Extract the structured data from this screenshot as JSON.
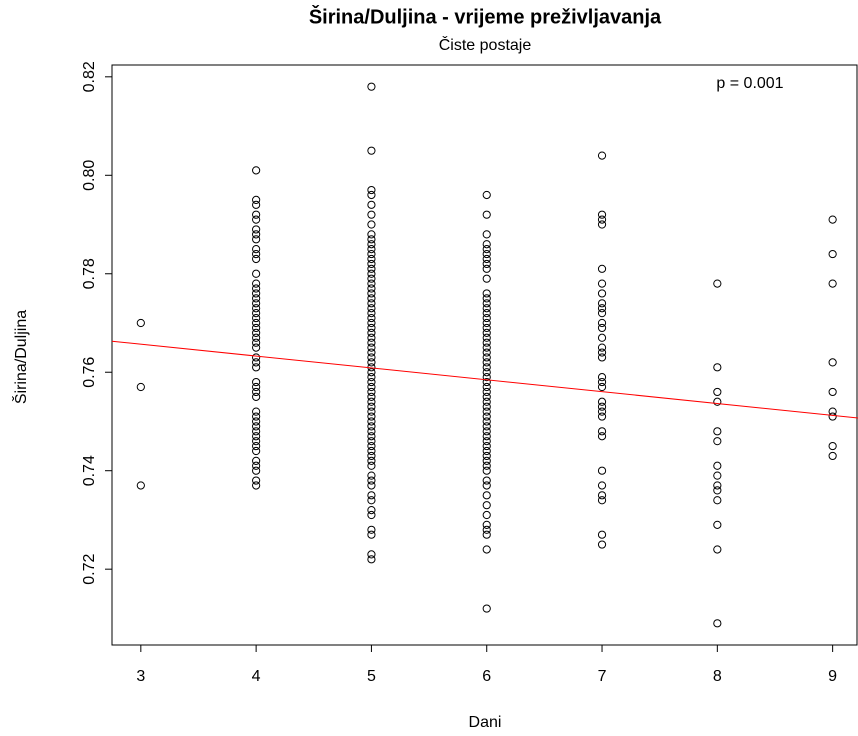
{
  "chart_data": {
    "type": "scatter",
    "title": "Širina/Duljina - vrijeme preživljavanja",
    "subtitle": "Čiste postaje",
    "x_label": "Dani",
    "y_label": "Širina/Duljina",
    "annotation": "p = 0.001",
    "xlim": [
      2.75,
      9.22
    ],
    "ylim": [
      0.7046,
      0.8224
    ],
    "xticks": [
      3,
      4,
      5,
      6,
      7,
      8,
      9
    ],
    "yticks": [
      0.72,
      0.74,
      0.76,
      0.78,
      {
        "value": 0.8,
        "label": "0.80"
      },
      0.82
    ],
    "grid": false,
    "color": "#000000",
    "fit": {
      "x": [
        2.75,
        9.22
      ],
      "y": [
        0.7663,
        0.7507
      ],
      "color": "#ff0000"
    },
    "x": [
      3,
      3,
      3,
      4,
      4,
      4,
      4,
      4,
      4,
      4,
      4,
      4,
      4,
      4,
      4,
      4,
      4,
      4,
      4,
      4,
      4,
      4,
      4,
      4,
      4,
      4,
      4,
      4,
      4,
      4,
      4,
      4,
      4,
      4,
      4,
      4,
      4,
      4,
      4,
      4,
      4,
      4,
      4,
      4,
      4,
      4,
      4,
      4,
      4,
      4,
      5,
      5,
      5,
      5,
      5,
      5,
      5,
      5,
      5,
      5,
      5,
      5,
      5,
      5,
      5,
      5,
      5,
      5,
      5,
      5,
      5,
      5,
      5,
      5,
      5,
      5,
      5,
      5,
      5,
      5,
      5,
      5,
      5,
      5,
      5,
      5,
      5,
      5,
      5,
      5,
      5,
      5,
      5,
      5,
      5,
      5,
      5,
      5,
      5,
      5,
      5,
      5,
      5,
      5,
      5,
      5,
      5,
      5,
      5,
      5,
      5,
      5,
      5,
      5,
      5,
      5,
      6,
      6,
      6,
      6,
      6,
      6,
      6,
      6,
      6,
      6,
      6,
      6,
      6,
      6,
      6,
      6,
      6,
      6,
      6,
      6,
      6,
      6,
      6,
      6,
      6,
      6,
      6,
      6,
      6,
      6,
      6,
      6,
      6,
      6,
      6,
      6,
      6,
      6,
      6,
      6,
      6,
      6,
      6,
      6,
      6,
      6,
      6,
      6,
      6,
      6,
      6,
      6,
      6,
      6,
      6,
      6,
      6,
      7,
      7,
      7,
      7,
      7,
      7,
      7,
      7,
      7,
      7,
      7,
      7,
      7,
      7,
      7,
      7,
      7,
      7,
      7,
      7,
      7,
      7,
      7,
      7,
      7,
      7,
      7,
      7,
      7,
      7,
      7,
      8,
      8,
      8,
      8,
      8,
      8,
      8,
      8,
      8,
      8,
      8,
      8,
      8,
      8,
      9,
      9,
      9,
      9,
      9,
      9,
      9,
      9,
      9
    ],
    "values": [
      0.77,
      0.757,
      0.737,
      0.801,
      0.795,
      0.794,
      0.792,
      0.791,
      0.789,
      0.788,
      0.787,
      0.785,
      0.784,
      0.783,
      0.78,
      0.778,
      0.777,
      0.776,
      0.775,
      0.774,
      0.773,
      0.772,
      0.771,
      0.77,
      0.769,
      0.768,
      0.767,
      0.766,
      0.765,
      0.763,
      0.762,
      0.761,
      0.758,
      0.757,
      0.756,
      0.755,
      0.752,
      0.751,
      0.75,
      0.749,
      0.748,
      0.747,
      0.746,
      0.745,
      0.744,
      0.742,
      0.741,
      0.74,
      0.738,
      0.737,
      0.818,
      0.805,
      0.797,
      0.796,
      0.794,
      0.792,
      0.79,
      0.788,
      0.787,
      0.786,
      0.785,
      0.784,
      0.783,
      0.782,
      0.781,
      0.78,
      0.779,
      0.778,
      0.777,
      0.776,
      0.775,
      0.774,
      0.773,
      0.772,
      0.771,
      0.77,
      0.769,
      0.768,
      0.767,
      0.766,
      0.765,
      0.764,
      0.763,
      0.762,
      0.761,
      0.76,
      0.759,
      0.758,
      0.757,
      0.756,
      0.755,
      0.754,
      0.753,
      0.752,
      0.751,
      0.75,
      0.749,
      0.748,
      0.747,
      0.746,
      0.745,
      0.744,
      0.743,
      0.742,
      0.741,
      0.739,
      0.738,
      0.737,
      0.735,
      0.734,
      0.732,
      0.731,
      0.728,
      0.727,
      0.723,
      0.722,
      0.796,
      0.792,
      0.788,
      0.786,
      0.785,
      0.784,
      0.783,
      0.782,
      0.781,
      0.779,
      0.776,
      0.775,
      0.774,
      0.773,
      0.772,
      0.771,
      0.77,
      0.769,
      0.768,
      0.767,
      0.766,
      0.765,
      0.764,
      0.763,
      0.762,
      0.761,
      0.76,
      0.759,
      0.758,
      0.757,
      0.756,
      0.755,
      0.754,
      0.753,
      0.752,
      0.751,
      0.75,
      0.749,
      0.748,
      0.747,
      0.746,
      0.745,
      0.744,
      0.743,
      0.742,
      0.741,
      0.74,
      0.738,
      0.737,
      0.735,
      0.733,
      0.731,
      0.729,
      0.728,
      0.727,
      0.724,
      0.712,
      0.804,
      0.792,
      0.791,
      0.79,
      0.781,
      0.778,
      0.776,
      0.774,
      0.773,
      0.772,
      0.77,
      0.769,
      0.767,
      0.765,
      0.764,
      0.763,
      0.759,
      0.758,
      0.757,
      0.754,
      0.753,
      0.752,
      0.751,
      0.748,
      0.747,
      0.74,
      0.737,
      0.735,
      0.734,
      0.727,
      0.725,
      0.778,
      0.761,
      0.756,
      0.754,
      0.748,
      0.746,
      0.741,
      0.739,
      0.737,
      0.736,
      0.734,
      0.729,
      0.724,
      0.709,
      0.791,
      0.784,
      0.778,
      0.762,
      0.756,
      0.752,
      0.751,
      0.745,
      0.743
    ]
  }
}
